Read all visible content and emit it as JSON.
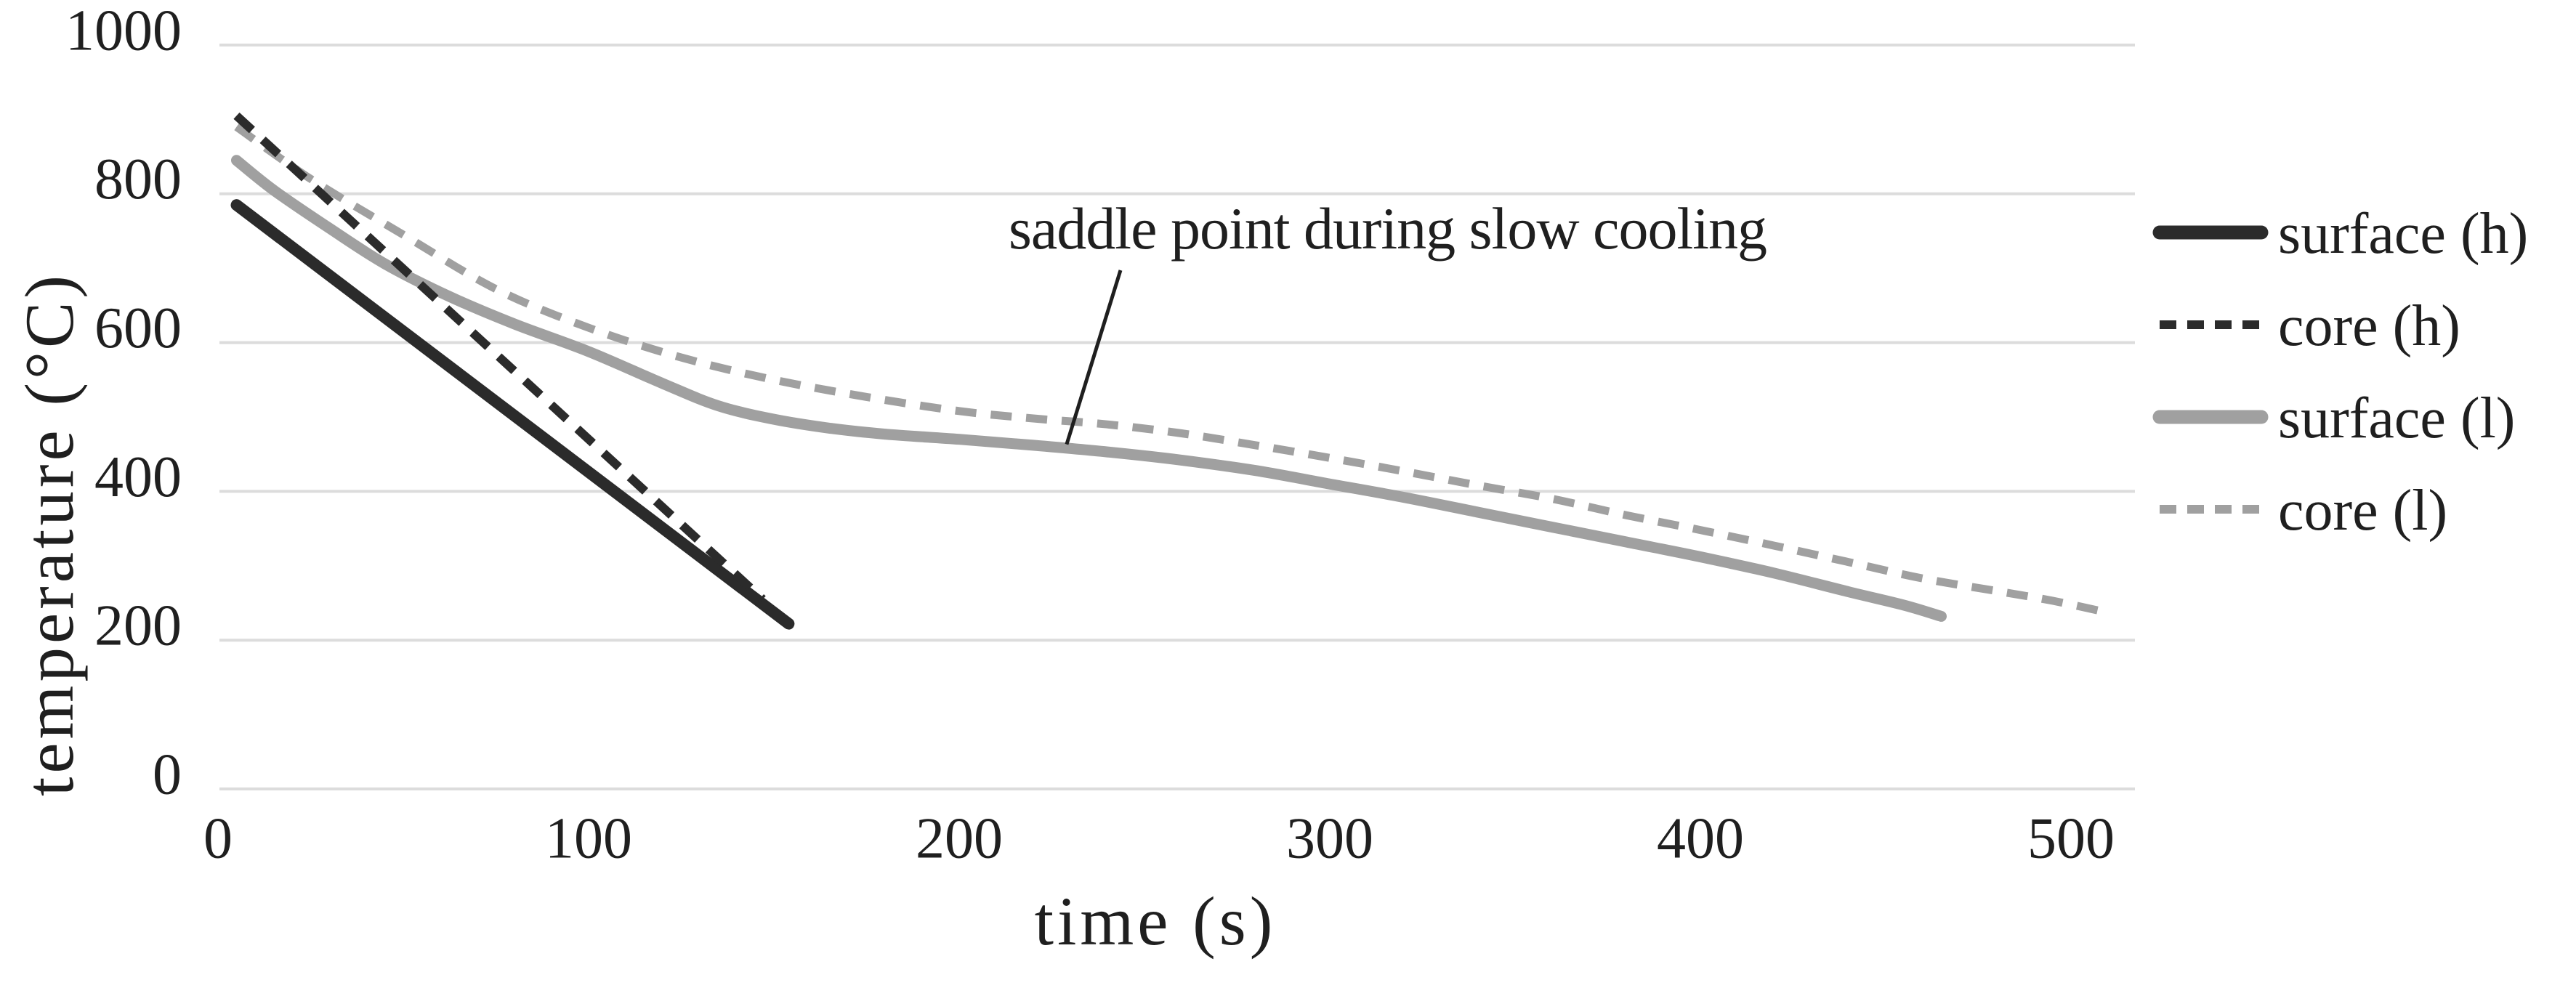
{
  "colors": {
    "dark": "#2b2b2b",
    "gray": "#a0a0a0",
    "gridline": "#dcdcdc",
    "text": "#1f1f1f"
  },
  "chart_data": {
    "type": "line",
    "title": "",
    "xlabel": "time (s)",
    "ylabel": "temperature  (°C)",
    "xlim": [
      0,
      520
    ],
    "ylim": [
      0,
      1000
    ],
    "x_ticks": [
      0,
      100,
      200,
      300,
      400,
      500
    ],
    "y_ticks": [
      0,
      200,
      400,
      600,
      800,
      1000
    ],
    "grid": "horizontal",
    "legend_position": "right",
    "annotation": {
      "text": "saddle point during slow cooling",
      "target_t": 229,
      "target_temp": 475
    },
    "series": [
      {
        "name": "surface (h)",
        "key": "surface-h",
        "color_key": "dark",
        "dash": false,
        "width": 16,
        "points": [
          [
            5,
            785
          ],
          [
            154,
            222
          ]
        ]
      },
      {
        "name": "core (h)",
        "key": "core-h",
        "color_key": "dark",
        "dash": true,
        "width": 12,
        "points": [
          [
            5,
            905
          ],
          [
            147,
            255
          ]
        ]
      },
      {
        "name": "surface (l)",
        "key": "surface-l",
        "color_key": "gray",
        "dash": false,
        "width": 15,
        "points": [
          [
            5,
            845
          ],
          [
            15,
            805
          ],
          [
            30,
            754
          ],
          [
            45,
            706
          ],
          [
            62,
            663
          ],
          [
            80,
            625
          ],
          [
            100,
            588
          ],
          [
            120,
            545
          ],
          [
            135,
            515
          ],
          [
            150,
            497
          ],
          [
            165,
            485
          ],
          [
            180,
            477
          ],
          [
            200,
            470
          ],
          [
            220,
            462
          ],
          [
            240,
            453
          ],
          [
            260,
            442
          ],
          [
            280,
            428
          ],
          [
            300,
            410
          ],
          [
            320,
            392
          ],
          [
            340,
            372
          ],
          [
            360,
            352
          ],
          [
            380,
            332
          ],
          [
            400,
            312
          ],
          [
            420,
            290
          ],
          [
            440,
            265
          ],
          [
            455,
            247
          ],
          [
            465,
            232
          ]
        ]
      },
      {
        "name": "core (l)",
        "key": "core-l",
        "color_key": "gray",
        "dash": true,
        "width": 11,
        "points": [
          [
            5,
            890
          ],
          [
            25,
            820
          ],
          [
            50,
            745
          ],
          [
            75,
            672
          ],
          [
            100,
            620
          ],
          [
            125,
            580
          ],
          [
            150,
            550
          ],
          [
            175,
            527
          ],
          [
            200,
            508
          ],
          [
            220,
            498
          ],
          [
            240,
            490
          ],
          [
            260,
            478
          ],
          [
            280,
            462
          ],
          [
            300,
            445
          ],
          [
            320,
            427
          ],
          [
            340,
            408
          ],
          [
            360,
            390
          ],
          [
            380,
            368
          ],
          [
            400,
            348
          ],
          [
            420,
            327
          ],
          [
            440,
            305
          ],
          [
            460,
            283
          ],
          [
            480,
            266
          ],
          [
            495,
            253
          ],
          [
            510,
            237
          ]
        ]
      }
    ]
  }
}
